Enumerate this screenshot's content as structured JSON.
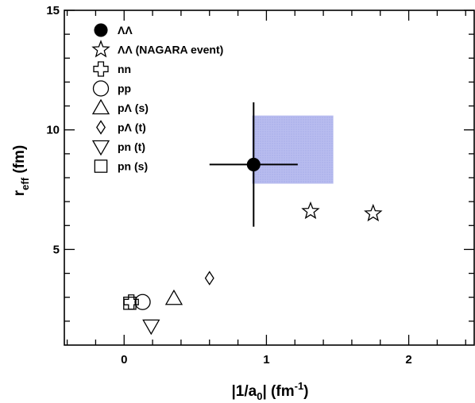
{
  "chart_data": {
    "type": "scatter",
    "xlabel_main": "|1/a",
    "xlabel_sub": "0",
    "xlabel_tail": "| (fm",
    "xlabel_sup": "-1",
    "xlabel_close": ")",
    "ylabel_main": "r",
    "ylabel_sub": "eff",
    "ylabel_tail": " (fm)",
    "xlim": [
      -0.42,
      2.46
    ],
    "ylim": [
      1.0,
      15.0
    ],
    "x_ticks": [
      0,
      1,
      2
    ],
    "x_tick_labels": [
      "0",
      "1",
      "2"
    ],
    "y_ticks": [
      5,
      10,
      15
    ],
    "y_tick_labels": [
      "5",
      "10",
      "15"
    ],
    "legend": [
      {
        "symbol": "filled-circle",
        "label": "ΛΛ"
      },
      {
        "symbol": "star",
        "label": "ΛΛ (NAGARA event)"
      },
      {
        "symbol": "cross",
        "label": "nn"
      },
      {
        "symbol": "circle",
        "label": "pp"
      },
      {
        "symbol": "triangle-up",
        "label": "pΛ (s)"
      },
      {
        "symbol": "diamond",
        "label": "pΛ (t)"
      },
      {
        "symbol": "triangle-down",
        "label": "pn (t)"
      },
      {
        "symbol": "square",
        "label": "pn (s)"
      }
    ],
    "series": [
      {
        "name": "ΛΛ",
        "symbol": "filled-circle",
        "points": [
          {
            "x": 0.91,
            "y": 8.55,
            "xerr": [
              0.31,
              0.31
            ],
            "yerr": [
              2.6,
              2.6
            ]
          }
        ]
      },
      {
        "name": "ΛΛ (NAGARA event)",
        "symbol": "star",
        "points": [
          {
            "x": 1.31,
            "y": 6.6
          },
          {
            "x": 1.75,
            "y": 6.5
          }
        ]
      },
      {
        "name": "nn",
        "symbol": "cross",
        "points": [
          {
            "x": 0.05,
            "y": 2.8
          }
        ]
      },
      {
        "name": "pp",
        "symbol": "circle",
        "points": [
          {
            "x": 0.13,
            "y": 2.8
          }
        ]
      },
      {
        "name": "pΛ (s)",
        "symbol": "triangle-up",
        "points": [
          {
            "x": 0.35,
            "y": 2.95
          }
        ]
      },
      {
        "name": "pΛ (t)",
        "symbol": "diamond",
        "points": [
          {
            "x": 0.6,
            "y": 3.8
          }
        ]
      },
      {
        "name": "pn (t)",
        "symbol": "triangle-down",
        "points": [
          {
            "x": 0.19,
            "y": 1.8
          }
        ]
      },
      {
        "name": "pn (s)",
        "symbol": "square",
        "points": [
          {
            "x": 0.04,
            "y": 2.75
          }
        ]
      }
    ],
    "shaded_region": {
      "x": [
        0.9,
        1.47
      ],
      "y": [
        7.75,
        10.6
      ],
      "color": "#aeb3ec"
    },
    "grid": false
  }
}
